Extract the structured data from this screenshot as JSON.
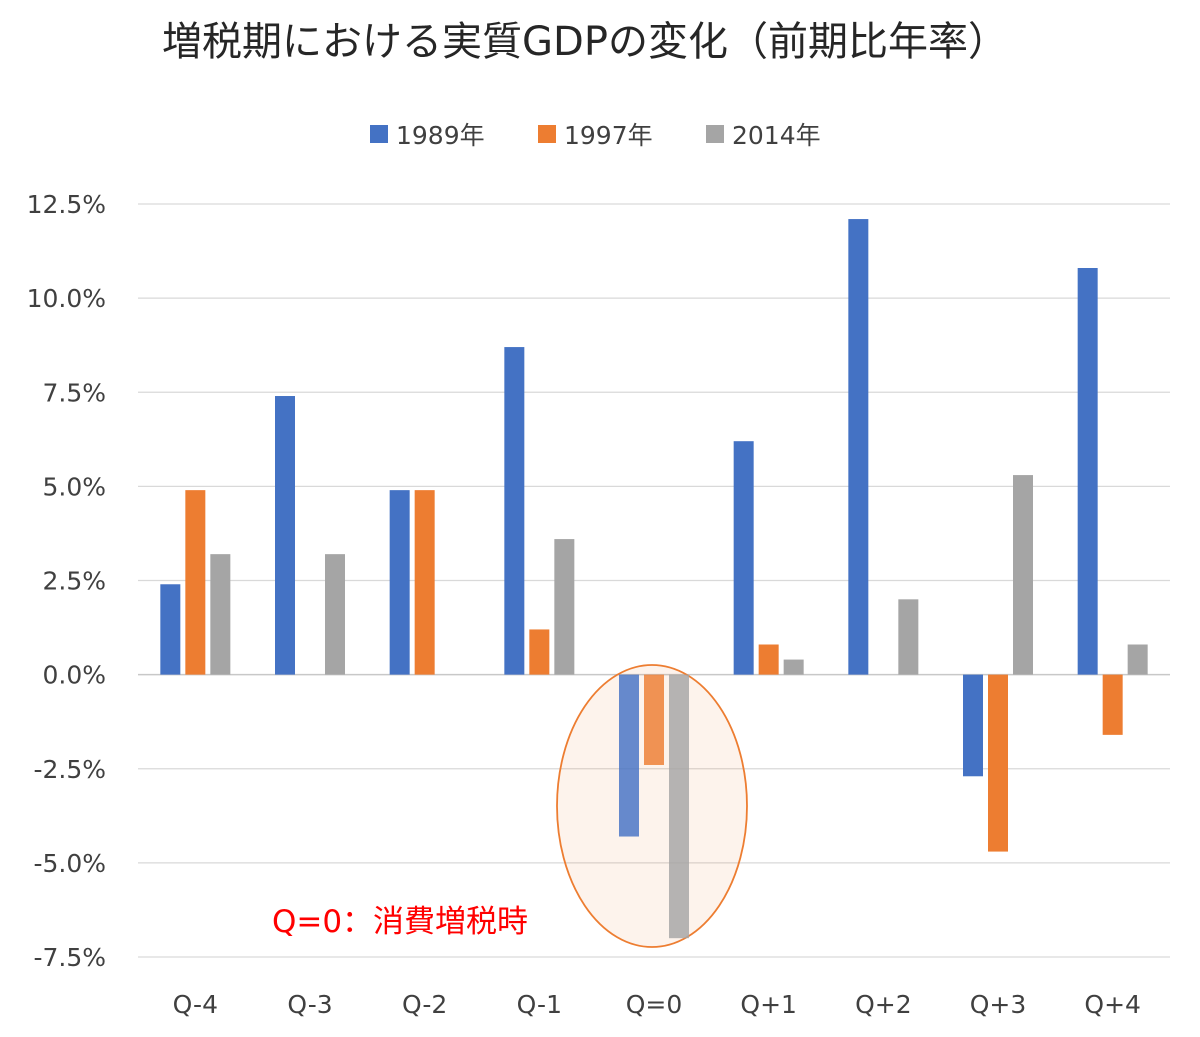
{
  "chart_data": {
    "type": "bar",
    "title": "増税期における実質GDPの変化（前期比年率）",
    "xlabel": "",
    "ylabel": "",
    "categories": [
      "Q-4",
      "Q-3",
      "Q-2",
      "Q-1",
      "Q=0",
      "Q+1",
      "Q+2",
      "Q+3",
      "Q+4"
    ],
    "series": [
      {
        "name": "1989年",
        "color": "#4472C4",
        "values": [
          2.4,
          7.4,
          4.9,
          8.7,
          -4.3,
          6.2,
          12.1,
          -2.7,
          10.8
        ]
      },
      {
        "name": "1997年",
        "color": "#ED7D31",
        "values": [
          4.9,
          0.0,
          4.9,
          1.2,
          -2.4,
          0.8,
          0.0,
          -4.7,
          -1.6
        ]
      },
      {
        "name": "2014年",
        "color": "#A5A5A5",
        "values": [
          3.2,
          3.2,
          0.0,
          3.6,
          -7.0,
          0.4,
          2.0,
          5.3,
          0.8
        ]
      }
    ],
    "ylim": [
      -7.5,
      12.5
    ],
    "yticks": [
      12.5,
      10.0,
      7.5,
      5.0,
      2.5,
      0.0,
      -2.5,
      -5.0,
      -7.5
    ],
    "ytick_labels": [
      "12.5%",
      "10.0%",
      "7.5%",
      "5.0%",
      "2.5%",
      "0.0%",
      "-2.5%",
      "-5.0%",
      "-7.5%"
    ],
    "grid": true,
    "legend_position": "top-center",
    "highlight": {
      "category": "Q=0",
      "shape": "ellipse",
      "color": "#ED7D31"
    },
    "annotation": {
      "text": "Q=0：消費増税時",
      "color": "#FF0000"
    }
  }
}
